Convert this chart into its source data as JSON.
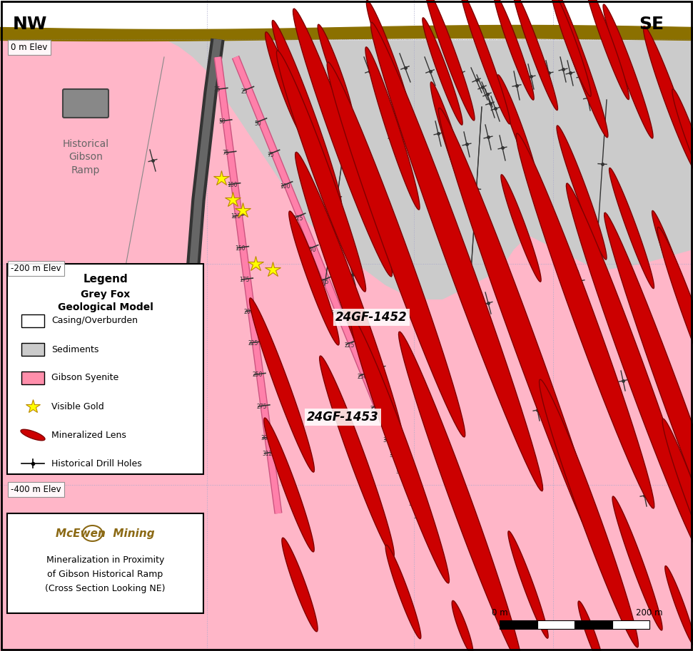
{
  "bg_color": "#FFB6C8",
  "sediment_color": "#CBCBCB",
  "surface_band_color": "#8B7000",
  "white_strip_color": "#FFFFFF",
  "lens_fill": "#CC0000",
  "lens_edge": "#800000",
  "borehole_pink": "#FF80AA",
  "ramp_dark": "#555555",
  "ramp_mid": "#888888",
  "nw_label": "NW",
  "se_label": "SE",
  "elev_labels": [
    {
      "text": "0 m Elev",
      "xf": 0.012,
      "yf": 0.895
    },
    {
      "text": "-200 m Elev",
      "xf": 0.012,
      "yf": 0.55
    },
    {
      "text": "-400 m Elev",
      "xf": 0.012,
      "yf": 0.195
    }
  ],
  "legend_title": "Legend",
  "legend_subtitle": "Grey Fox\nGeological Model",
  "legend_items": [
    "Casing/Overburden",
    "Sediments",
    "Gibson Syenite",
    "Visible Gold",
    "Mineralized Lens",
    "Historical Drill Holes"
  ],
  "bh1_label": "24GF-1452",
  "bh2_label": "24GF-1453",
  "scale_label": "200 m",
  "caption_line1": "Mineralization in Proximity",
  "caption_line2": "of Gibson Historical Ramp",
  "caption_line3": "(Cross Section Looking NE)"
}
